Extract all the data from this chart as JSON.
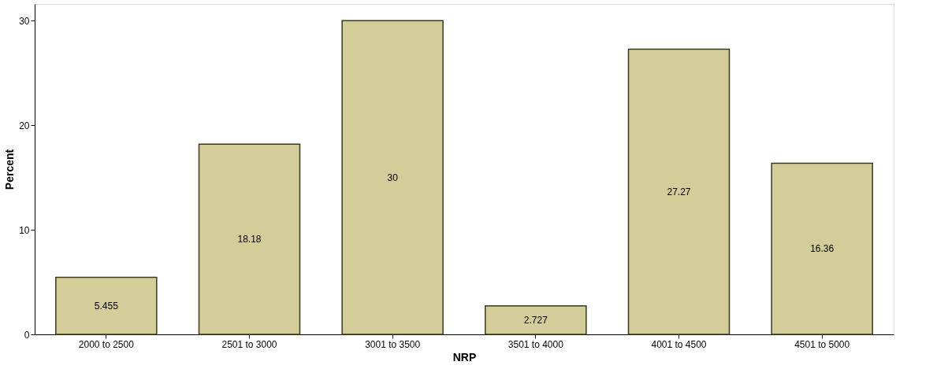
{
  "chart_data": {
    "type": "bar",
    "xlabel": "NRP",
    "ylabel": "Percent",
    "categories": [
      "2000 to 2500",
      "2501 to 3000",
      "3001 to 3500",
      "3501 to 4000",
      "4001 to 4500",
      "4501 to 5000"
    ],
    "values": [
      5.455,
      18.18,
      30,
      2.727,
      27.27,
      16.36
    ],
    "color": "#d3ce99",
    "ylim": [
      0,
      31.6
    ],
    "yticks": [
      0,
      10,
      20,
      30
    ],
    "grid": false,
    "data_labels": true
  }
}
